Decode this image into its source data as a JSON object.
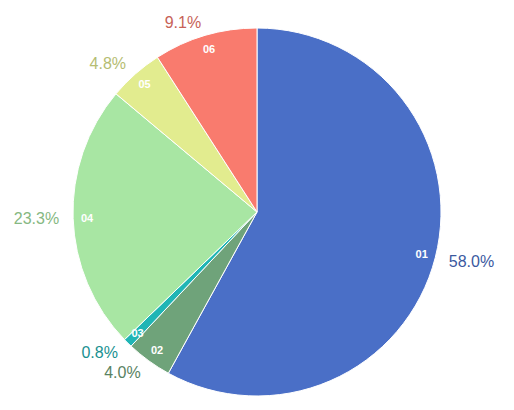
{
  "chart_data": {
    "type": "pie",
    "categories": [
      "01",
      "02",
      "03",
      "04",
      "05",
      "06"
    ],
    "values": [
      58,
      4,
      0.8,
      23.3,
      4.8,
      9.1
    ],
    "value_labels": [
      "58.0%",
      "4.0%",
      "0.8%",
      "23.3%",
      "4.8%",
      "9.1%"
    ],
    "colors": [
      "#4a6fc7",
      "#6fa37a",
      "#1fb5b5",
      "#a8e6a3",
      "#e2ec8f",
      "#f97b6e"
    ],
    "data_labels": true
  }
}
